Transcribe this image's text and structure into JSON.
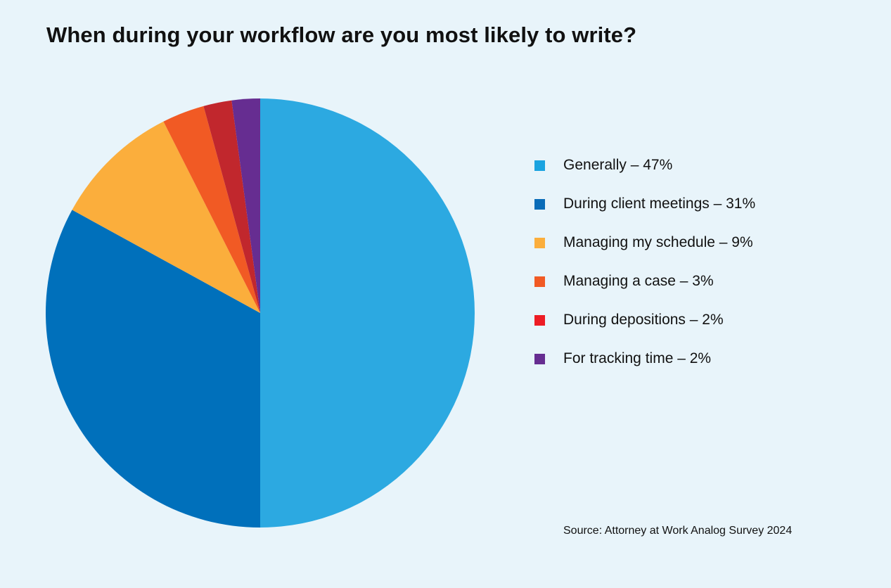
{
  "chart_data": {
    "type": "pie",
    "title": "When during your workflow are you most likely to write?",
    "slices": [
      {
        "label": "Generally – 47%",
        "value": 47,
        "color": "#2ca9e1"
      },
      {
        "label": "During client meetings – 31%",
        "value": 31,
        "color": "#0070bb"
      },
      {
        "label": "Managing my schedule – 9%",
        "value": 9,
        "color": "#fbae3c"
      },
      {
        "label": "Managing a case – 3%",
        "value": 3,
        "color": "#f15a24"
      },
      {
        "label": "During depositions – 2%",
        "value": 2,
        "color": "#c1272d"
      },
      {
        "label": "For tracking time  – 2%",
        "value": 2,
        "color": "#662d91"
      }
    ],
    "legend_colors": [
      "#1aa3e0",
      "#0a6cb8",
      "#fbae3c",
      "#f15a24",
      "#ed1c24",
      "#662d91"
    ],
    "legend_position": "right",
    "source": "Source: Attorney at Work Analog Survey 2024"
  }
}
